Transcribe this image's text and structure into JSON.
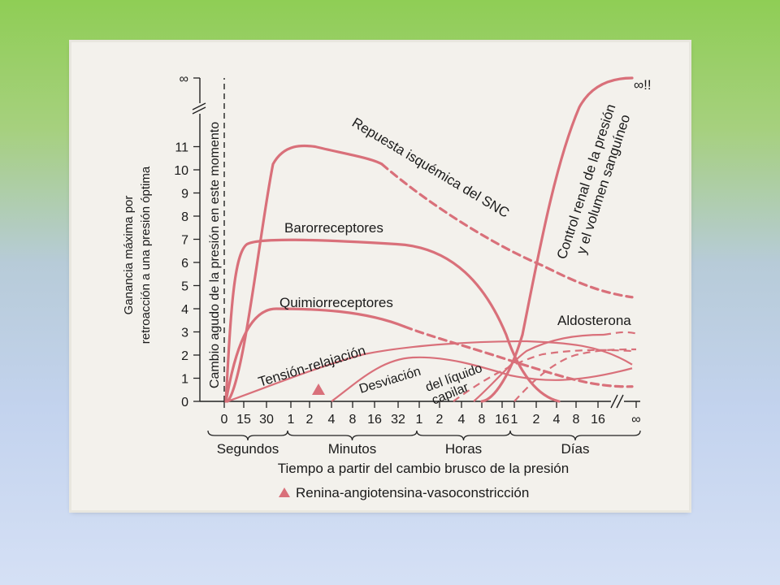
{
  "chart_data": {
    "type": "line",
    "title": "",
    "ylabel": [
      "Ganancia máxima por",
      "retroacción a una presión óptima"
    ],
    "xlabel": "Tiempo a partir del cambio brusco de la presión",
    "vertical_marker_label": "Cambio agudo de la presión en este momento",
    "y_ticks": [
      "0",
      "1",
      "2",
      "3",
      "4",
      "5",
      "6",
      "7",
      "8",
      "9",
      "10",
      "11",
      "∞"
    ],
    "x_ticks": [
      "0",
      "15",
      "30",
      "1",
      "2",
      "4",
      "8",
      "16",
      "32",
      "1",
      "2",
      "4",
      "8",
      "16",
      "1",
      "2",
      "4",
      "8",
      "16",
      "∞"
    ],
    "x_groups": [
      "Segundos",
      "Minutos",
      "Horas",
      "Días"
    ],
    "legend": [
      {
        "symbol": "triangle",
        "label": "Renina-angiotensina-vasoconstricción"
      }
    ],
    "series": [
      {
        "name": "Repuesta isquémica del SNC",
        "peak": 11,
        "end": 4.5
      },
      {
        "name": "Barorreceptores",
        "peak": 7,
        "end": 0
      },
      {
        "name": "Quimiorreceptores",
        "peak": 4,
        "end": 0.5
      },
      {
        "name": "Tensión-relajación",
        "peak": 2.5,
        "end": 1.8
      },
      {
        "name": "Desviación del líquido capilar",
        "peak": 2,
        "end": 1.5
      },
      {
        "name": "Aldosterona",
        "peak": 3,
        "end": 3
      },
      {
        "name": "Control renal de la presión y el volumen sanguíneo",
        "peak": "∞",
        "end": "∞"
      }
    ],
    "annotations": [
      "∞!!"
    ]
  }
}
